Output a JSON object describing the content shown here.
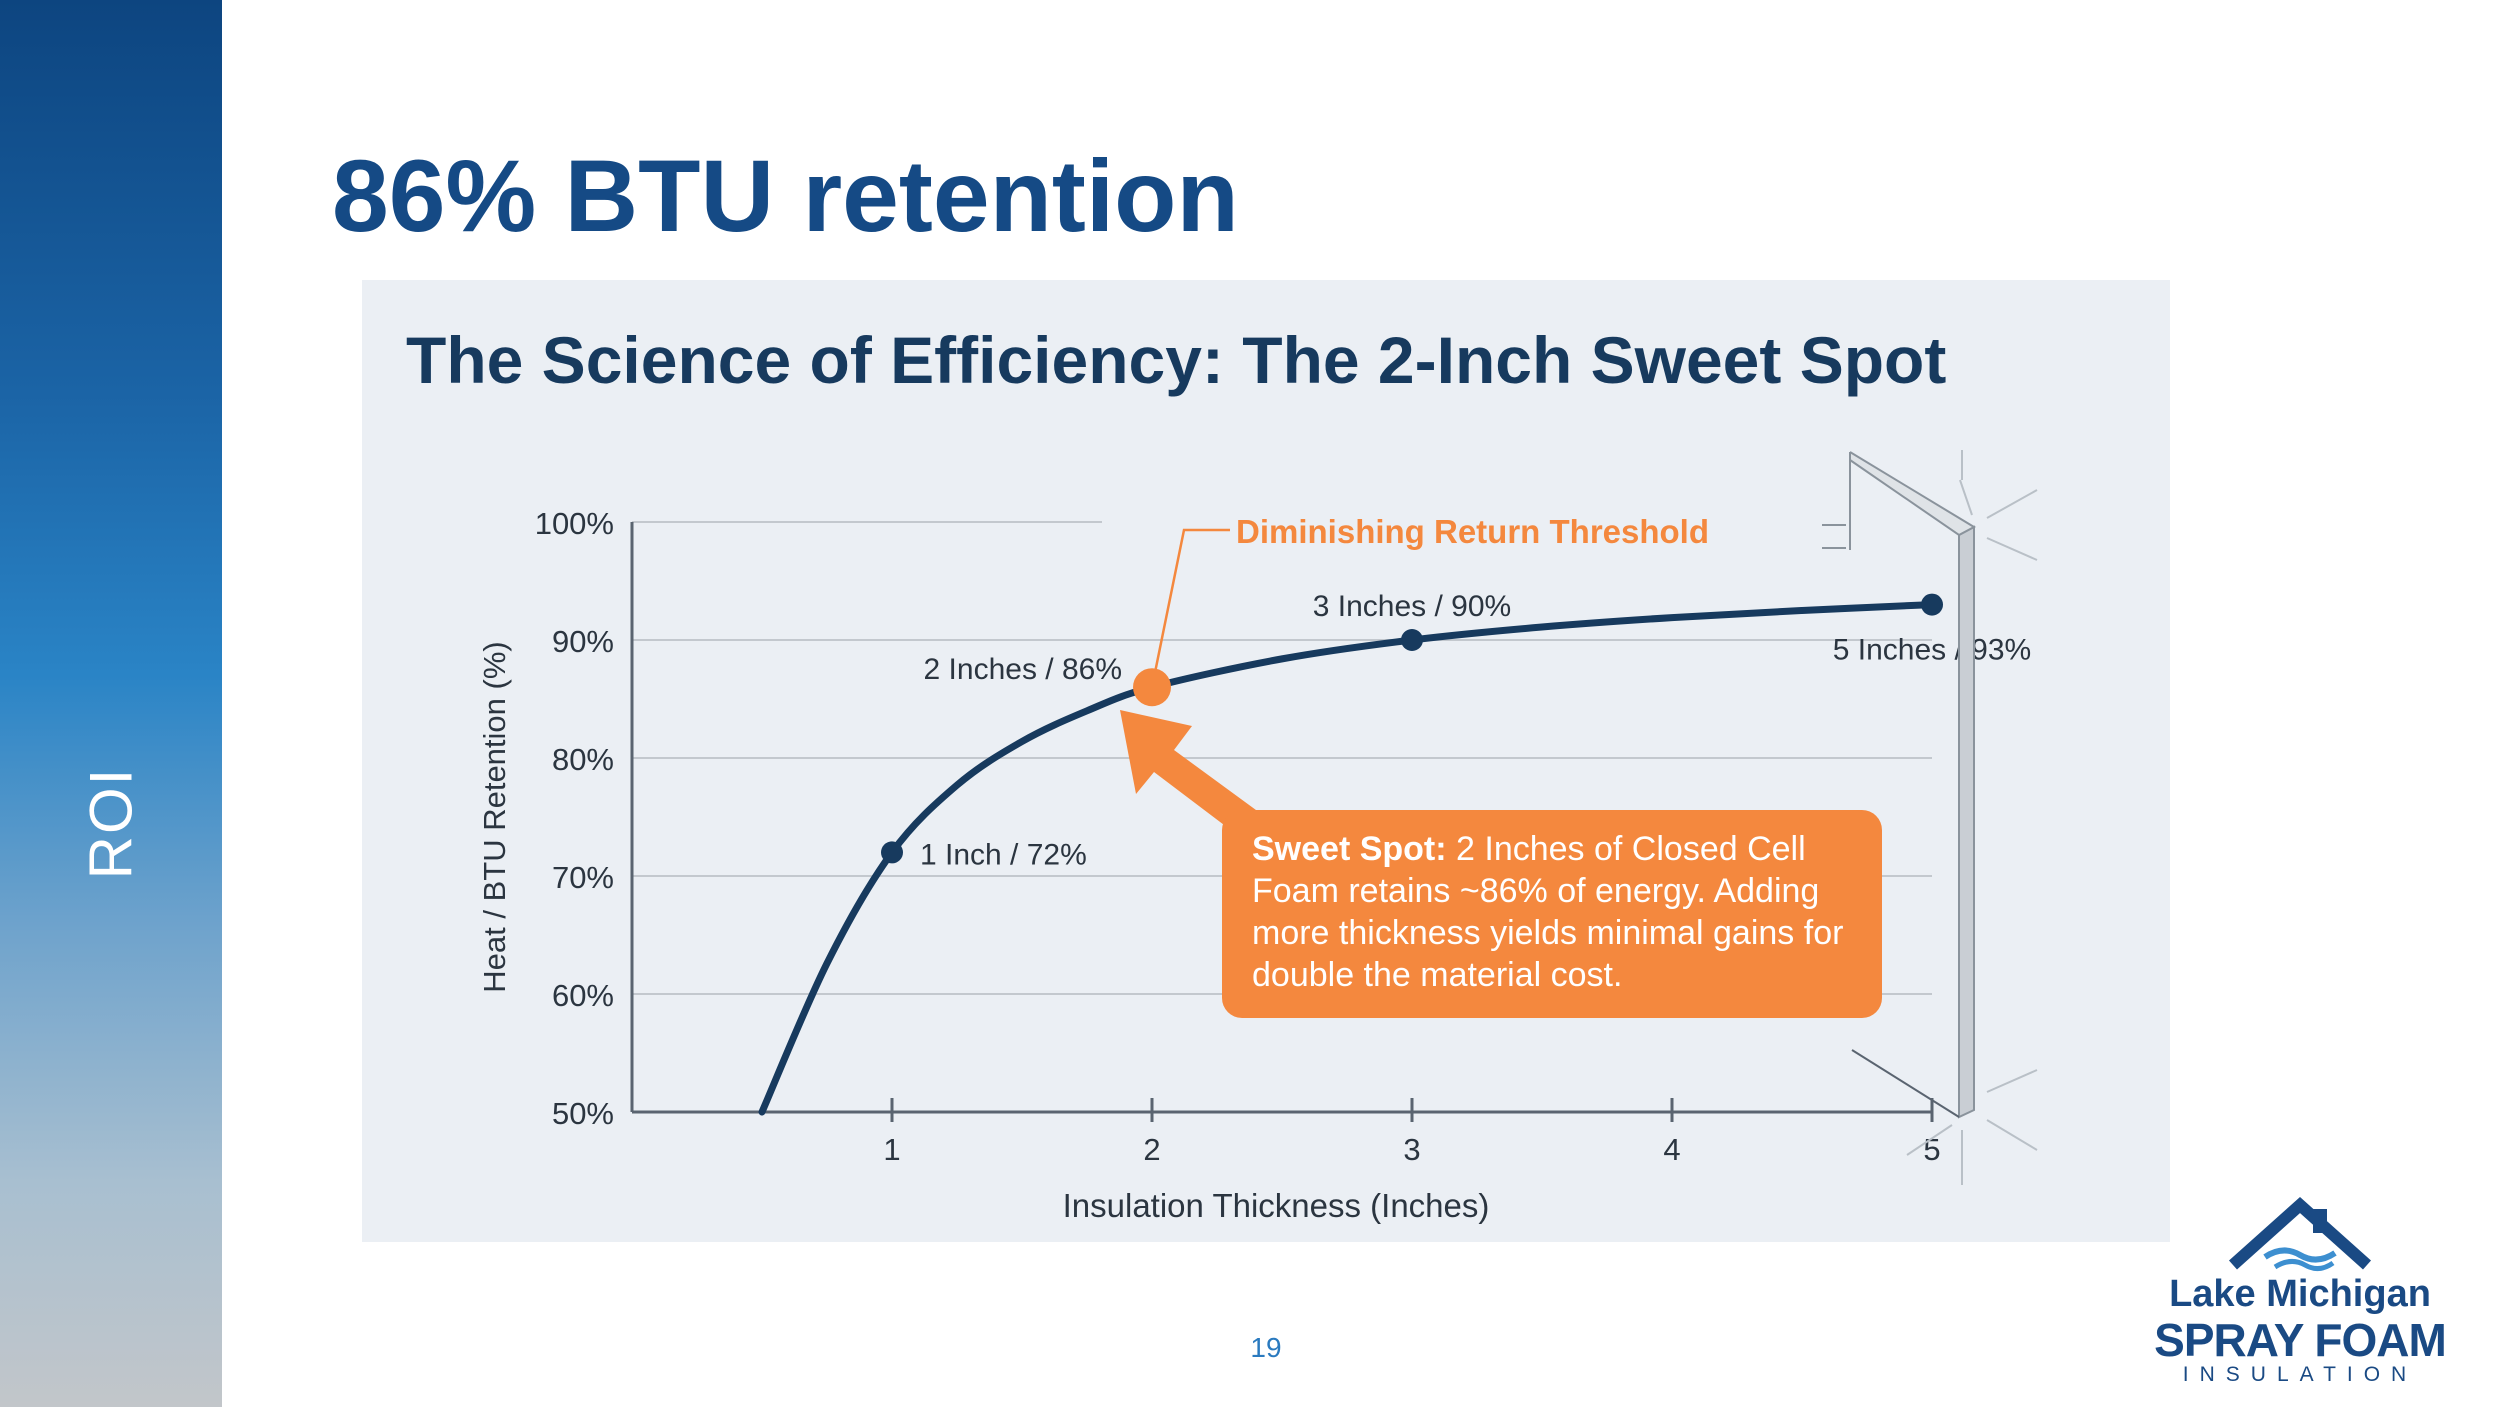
{
  "sidebar": {
    "label": "ROI"
  },
  "slide": {
    "title": "86% BTU retention",
    "page_number": "19"
  },
  "callout": {
    "bold_text": "Sweet Spot:",
    "text": "2 Inches of Closed Cell Foam retains ~86% of energy. Adding more thickness yields minimal gains for double the material cost."
  },
  "logo": {
    "line1": "Lake Michigan",
    "line2": "SPRAY FOAM",
    "line3": "INSULATION"
  },
  "colors": {
    "brand_blue": "#154a85",
    "curve": "#173a5e",
    "accent_orange": "#f4883e"
  },
  "chart_data": {
    "type": "line",
    "title": "The Science of Efficiency: The 2-Inch Sweet Spot",
    "xlabel": "Insulation Thickness (Inches)",
    "ylabel": "Heat / BTU Retention (%)",
    "xlim": [
      0,
      5
    ],
    "ylim": [
      50,
      100
    ],
    "x_ticks": [
      1,
      2,
      3,
      4,
      5
    ],
    "y_ticks": [
      "50%",
      "60%",
      "70%",
      "80%",
      "90%",
      "100%"
    ],
    "grid": true,
    "series": [
      {
        "x": [
          0.5,
          0.75,
          1,
          1.25,
          1.5,
          1.75,
          2,
          2.5,
          3,
          3.5,
          4,
          4.5,
          5
        ],
        "y": [
          50,
          62.6,
          72,
          77.7,
          81.4,
          84,
          86,
          88.4,
          90,
          91.1,
          91.9,
          92.5,
          93
        ]
      }
    ],
    "labeled_points": [
      {
        "x": 1,
        "y": 72,
        "label": "1 Inch / 72%"
      },
      {
        "x": 2,
        "y": 86,
        "label": "2 Inches / 86%"
      },
      {
        "x": 3,
        "y": 90,
        "label": "3 Inches / 90%"
      },
      {
        "x": 5,
        "y": 93,
        "label": "5 Inches / 93%"
      }
    ],
    "annotations": [
      {
        "text": "Diminishing Return Threshold",
        "x": 2,
        "y": 86
      }
    ]
  }
}
